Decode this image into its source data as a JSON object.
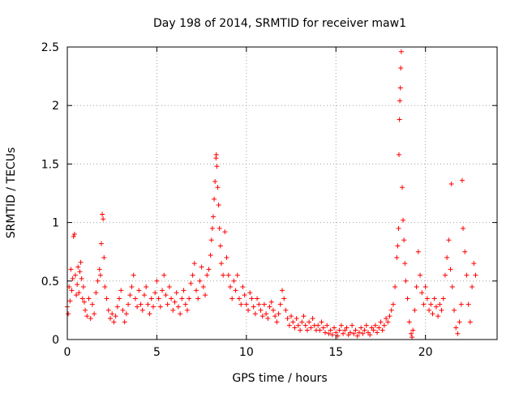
{
  "chart_data": {
    "type": "scatter",
    "title": "Day 198 of 2014, SRMTID for receiver maw1",
    "xlabel": "GPS time / hours",
    "ylabel": "SRMTID / TECUs",
    "xlim": [
      0,
      24
    ],
    "ylim": [
      0,
      2.5
    ],
    "x_ticks": [
      0,
      5,
      10,
      15,
      20
    ],
    "x_tick_labels": [
      "0",
      "5",
      "10",
      "15",
      "20"
    ],
    "y_ticks": [
      0,
      0.5,
      1,
      1.5,
      2,
      2.5
    ],
    "y_tick_labels": [
      "0",
      "0.5",
      "1",
      "1.5",
      "2",
      "2.5"
    ],
    "grid": true,
    "marker": "+",
    "series": [
      {
        "name": "maw1",
        "color": "#ff0000",
        "points": [
          [
            0.0,
            0.28
          ],
          [
            0.05,
            0.22
          ],
          [
            0.1,
            0.45
          ],
          [
            0.15,
            0.33
          ],
          [
            0.2,
            0.6
          ],
          [
            0.25,
            0.42
          ],
          [
            0.3,
            0.52
          ],
          [
            0.35,
            0.88
          ],
          [
            0.4,
            0.9
          ],
          [
            0.45,
            0.55
          ],
          [
            0.5,
            0.38
          ],
          [
            0.55,
            0.47
          ],
          [
            0.6,
            0.62
          ],
          [
            0.65,
            0.4
          ],
          [
            0.7,
            0.58
          ],
          [
            0.75,
            0.66
          ],
          [
            0.8,
            0.52
          ],
          [
            0.85,
            0.35
          ],
          [
            0.9,
            0.45
          ],
          [
            0.95,
            0.32
          ],
          [
            1.0,
            0.25
          ],
          [
            1.1,
            0.2
          ],
          [
            1.2,
            0.35
          ],
          [
            1.3,
            0.18
          ],
          [
            1.4,
            0.3
          ],
          [
            1.5,
            0.22
          ],
          [
            1.6,
            0.4
          ],
          [
            1.7,
            0.5
          ],
          [
            1.8,
            0.6
          ],
          [
            1.85,
            0.55
          ],
          [
            1.9,
            0.82
          ],
          [
            1.95,
            1.07
          ],
          [
            2.0,
            1.03
          ],
          [
            2.05,
            0.7
          ],
          [
            2.1,
            0.45
          ],
          [
            2.2,
            0.35
          ],
          [
            2.3,
            0.25
          ],
          [
            2.4,
            0.18
          ],
          [
            2.5,
            0.22
          ],
          [
            2.6,
            0.15
          ],
          [
            2.7,
            0.2
          ],
          [
            2.8,
            0.28
          ],
          [
            2.9,
            0.35
          ],
          [
            3.0,
            0.42
          ],
          [
            3.1,
            0.25
          ],
          [
            3.2,
            0.15
          ],
          [
            3.3,
            0.22
          ],
          [
            3.4,
            0.3
          ],
          [
            3.5,
            0.38
          ],
          [
            3.6,
            0.45
          ],
          [
            3.7,
            0.55
          ],
          [
            3.8,
            0.35
          ],
          [
            3.9,
            0.28
          ],
          [
            4.0,
            0.42
          ],
          [
            4.1,
            0.3
          ],
          [
            4.2,
            0.25
          ],
          [
            4.3,
            0.38
          ],
          [
            4.4,
            0.45
          ],
          [
            4.5,
            0.3
          ],
          [
            4.6,
            0.22
          ],
          [
            4.7,
            0.35
          ],
          [
            4.8,
            0.28
          ],
          [
            4.9,
            0.4
          ],
          [
            5.0,
            0.5
          ],
          [
            5.1,
            0.35
          ],
          [
            5.2,
            0.28
          ],
          [
            5.3,
            0.42
          ],
          [
            5.4,
            0.55
          ],
          [
            5.5,
            0.38
          ],
          [
            5.6,
            0.3
          ],
          [
            5.7,
            0.45
          ],
          [
            5.8,
            0.35
          ],
          [
            5.9,
            0.25
          ],
          [
            6.0,
            0.32
          ],
          [
            6.1,
            0.4
          ],
          [
            6.2,
            0.28
          ],
          [
            6.3,
            0.22
          ],
          [
            6.4,
            0.35
          ],
          [
            6.5,
            0.42
          ],
          [
            6.6,
            0.3
          ],
          [
            6.7,
            0.25
          ],
          [
            6.8,
            0.35
          ],
          [
            6.9,
            0.48
          ],
          [
            7.0,
            0.55
          ],
          [
            7.1,
            0.65
          ],
          [
            7.2,
            0.42
          ],
          [
            7.3,
            0.35
          ],
          [
            7.4,
            0.5
          ],
          [
            7.5,
            0.62
          ],
          [
            7.6,
            0.45
          ],
          [
            7.7,
            0.38
          ],
          [
            7.8,
            0.55
          ],
          [
            7.9,
            0.6
          ],
          [
            8.0,
            0.72
          ],
          [
            8.05,
            0.85
          ],
          [
            8.1,
            0.95
          ],
          [
            8.15,
            1.05
          ],
          [
            8.2,
            1.2
          ],
          [
            8.25,
            1.35
          ],
          [
            8.3,
            1.55
          ],
          [
            8.32,
            1.58
          ],
          [
            8.35,
            1.48
          ],
          [
            8.4,
            1.3
          ],
          [
            8.45,
            1.15
          ],
          [
            8.5,
            0.95
          ],
          [
            8.55,
            0.8
          ],
          [
            8.6,
            0.65
          ],
          [
            8.7,
            0.55
          ],
          [
            8.8,
            0.92
          ],
          [
            8.9,
            0.7
          ],
          [
            9.0,
            0.55
          ],
          [
            9.1,
            0.45
          ],
          [
            9.2,
            0.35
          ],
          [
            9.3,
            0.5
          ],
          [
            9.4,
            0.42
          ],
          [
            9.5,
            0.55
          ],
          [
            9.6,
            0.35
          ],
          [
            9.7,
            0.3
          ],
          [
            9.8,
            0.45
          ],
          [
            9.9,
            0.38
          ],
          [
            10.0,
            0.3
          ],
          [
            10.1,
            0.25
          ],
          [
            10.2,
            0.4
          ],
          [
            10.3,
            0.35
          ],
          [
            10.4,
            0.28
          ],
          [
            10.5,
            0.22
          ],
          [
            10.6,
            0.35
          ],
          [
            10.7,
            0.3
          ],
          [
            10.8,
            0.25
          ],
          [
            10.9,
            0.2
          ],
          [
            11.0,
            0.3
          ],
          [
            11.1,
            0.22
          ],
          [
            11.2,
            0.18
          ],
          [
            11.3,
            0.28
          ],
          [
            11.4,
            0.32
          ],
          [
            11.5,
            0.25
          ],
          [
            11.6,
            0.2
          ],
          [
            11.7,
            0.15
          ],
          [
            11.8,
            0.22
          ],
          [
            11.9,
            0.3
          ],
          [
            12.0,
            0.42
          ],
          [
            12.1,
            0.35
          ],
          [
            12.2,
            0.25
          ],
          [
            12.3,
            0.18
          ],
          [
            12.4,
            0.12
          ],
          [
            12.5,
            0.2
          ],
          [
            12.6,
            0.15
          ],
          [
            12.7,
            0.1
          ],
          [
            12.8,
            0.18
          ],
          [
            12.9,
            0.12
          ],
          [
            13.0,
            0.08
          ],
          [
            13.1,
            0.15
          ],
          [
            13.2,
            0.2
          ],
          [
            13.3,
            0.12
          ],
          [
            13.4,
            0.08
          ],
          [
            13.5,
            0.15
          ],
          [
            13.6,
            0.1
          ],
          [
            13.7,
            0.18
          ],
          [
            13.8,
            0.12
          ],
          [
            13.9,
            0.08
          ],
          [
            14.0,
            0.12
          ],
          [
            14.1,
            0.08
          ],
          [
            14.2,
            0.15
          ],
          [
            14.3,
            0.1
          ],
          [
            14.4,
            0.06
          ],
          [
            14.5,
            0.12
          ],
          [
            14.6,
            0.05
          ],
          [
            14.7,
            0.08
          ],
          [
            14.8,
            0.04
          ],
          [
            14.9,
            0.1
          ],
          [
            15.0,
            0.06
          ],
          [
            15.1,
            0.03
          ],
          [
            15.2,
            0.08
          ],
          [
            15.3,
            0.12
          ],
          [
            15.4,
            0.05
          ],
          [
            15.5,
            0.08
          ],
          [
            15.6,
            0.1
          ],
          [
            15.7,
            0.04
          ],
          [
            15.8,
            0.06
          ],
          [
            15.9,
            0.12
          ],
          [
            16.0,
            0.05
          ],
          [
            16.1,
            0.08
          ],
          [
            16.2,
            0.03
          ],
          [
            16.3,
            0.06
          ],
          [
            16.4,
            0.1
          ],
          [
            16.5,
            0.05
          ],
          [
            16.6,
            0.08
          ],
          [
            16.7,
            0.12
          ],
          [
            16.8,
            0.06
          ],
          [
            16.9,
            0.04
          ],
          [
            17.0,
            0.1
          ],
          [
            17.1,
            0.08
          ],
          [
            17.2,
            0.12
          ],
          [
            17.3,
            0.06
          ],
          [
            17.4,
            0.1
          ],
          [
            17.5,
            0.15
          ],
          [
            17.6,
            0.08
          ],
          [
            17.7,
            0.12
          ],
          [
            17.8,
            0.18
          ],
          [
            17.9,
            0.15
          ],
          [
            18.0,
            0.2
          ],
          [
            18.1,
            0.25
          ],
          [
            18.2,
            0.3
          ],
          [
            18.3,
            0.45
          ],
          [
            18.4,
            0.7
          ],
          [
            18.45,
            0.8
          ],
          [
            18.5,
            0.95
          ],
          [
            18.52,
            1.58
          ],
          [
            18.55,
            1.88
          ],
          [
            18.57,
            2.04
          ],
          [
            18.6,
            2.15
          ],
          [
            18.62,
            2.32
          ],
          [
            18.65,
            2.46
          ],
          [
            18.7,
            1.3
          ],
          [
            18.75,
            1.02
          ],
          [
            18.8,
            0.85
          ],
          [
            18.85,
            0.65
          ],
          [
            18.9,
            0.5
          ],
          [
            19.0,
            0.35
          ],
          [
            19.1,
            0.15
          ],
          [
            19.2,
            0.05
          ],
          [
            19.25,
            0.02
          ],
          [
            19.3,
            0.08
          ],
          [
            19.4,
            0.25
          ],
          [
            19.5,
            0.45
          ],
          [
            19.6,
            0.75
          ],
          [
            19.7,
            0.55
          ],
          [
            19.8,
            0.4
          ],
          [
            19.9,
            0.3
          ],
          [
            20.0,
            0.45
          ],
          [
            20.1,
            0.35
          ],
          [
            20.2,
            0.25
          ],
          [
            20.3,
            0.3
          ],
          [
            20.4,
            0.22
          ],
          [
            20.5,
            0.35
          ],
          [
            20.6,
            0.28
          ],
          [
            20.7,
            0.2
          ],
          [
            20.8,
            0.3
          ],
          [
            20.9,
            0.25
          ],
          [
            21.0,
            0.35
          ],
          [
            21.1,
            0.55
          ],
          [
            21.2,
            0.7
          ],
          [
            21.3,
            0.85
          ],
          [
            21.4,
            0.6
          ],
          [
            21.45,
            1.33
          ],
          [
            21.5,
            0.45
          ],
          [
            21.6,
            0.25
          ],
          [
            21.7,
            0.1
          ],
          [
            21.8,
            0.05
          ],
          [
            21.9,
            0.15
          ],
          [
            22.0,
            0.3
          ],
          [
            22.05,
            1.36
          ],
          [
            22.1,
            0.95
          ],
          [
            22.2,
            0.75
          ],
          [
            22.3,
            0.55
          ],
          [
            22.4,
            0.3
          ],
          [
            22.5,
            0.15
          ],
          [
            22.6,
            0.45
          ],
          [
            22.7,
            0.65
          ],
          [
            22.8,
            0.55
          ]
        ]
      }
    ]
  }
}
